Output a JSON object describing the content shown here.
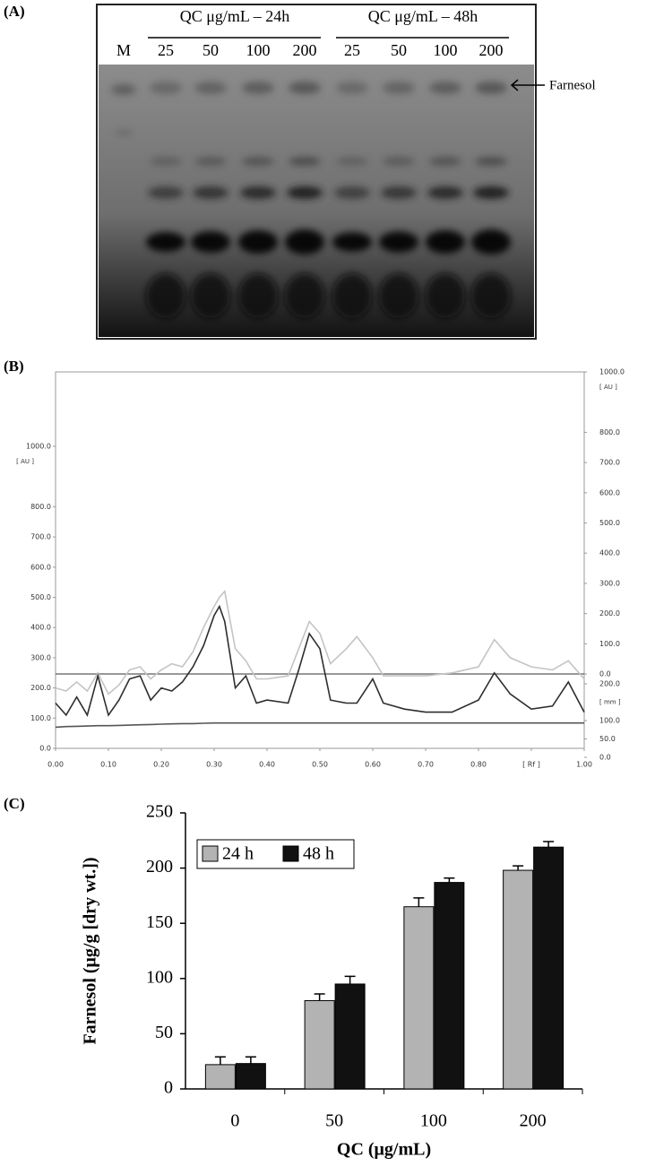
{
  "panel_a": {
    "title": "(A)",
    "groups": [
      "QC μg/mL – 24h",
      "QC μg/mL – 48h"
    ],
    "lanes": [
      "M",
      "25",
      "50",
      "100",
      "200",
      "25",
      "50",
      "100",
      "200"
    ],
    "annotation": "Farnesol"
  },
  "chart_data": [
    {
      "type": "line",
      "title": "(B)",
      "y_unit": "[ AU ]",
      "mm_unit": "[ mm ]",
      "x": [
        0,
        0.02,
        0.04,
        0.06,
        0.08,
        0.1,
        0.12,
        0.14,
        0.16,
        0.18,
        0.2,
        0.22,
        0.24,
        0.26,
        0.28,
        0.3,
        0.31,
        0.32,
        0.34,
        0.36,
        0.38,
        0.4,
        0.44,
        0.46,
        0.48,
        0.5,
        0.52,
        0.55,
        0.57,
        0.6,
        0.62,
        0.66,
        0.7,
        0.75,
        0.8,
        0.83,
        0.86,
        0.9,
        0.94,
        0.97,
        1
      ],
      "series": [
        {
          "color": "#c4c4c4",
          "values": [
            200,
            190,
            220,
            190,
            250,
            180,
            210,
            260,
            270,
            230,
            260,
            280,
            270,
            320,
            400,
            470,
            500,
            520,
            330,
            290,
            230,
            230,
            240,
            330,
            420,
            380,
            280,
            330,
            370,
            300,
            240,
            240,
            240,
            250,
            270,
            360,
            300,
            270,
            260,
            290,
            230
          ]
        },
        {
          "color": "#2e2e2e",
          "values": [
            150,
            110,
            170,
            110,
            240,
            110,
            160,
            230,
            240,
            160,
            200,
            190,
            220,
            270,
            340,
            440,
            470,
            420,
            200,
            240,
            150,
            160,
            150,
            260,
            380,
            330,
            160,
            150,
            150,
            230,
            150,
            130,
            120,
            120,
            160,
            250,
            180,
            130,
            140,
            220,
            120
          ]
        },
        {
          "color": "#555555",
          "values": [
            70,
            72,
            73,
            74,
            75,
            75,
            76,
            77,
            78,
            79,
            80,
            81,
            82,
            82,
            83,
            84,
            84,
            84,
            84,
            84,
            84,
            84,
            84,
            84,
            84,
            84,
            84,
            84,
            84,
            84,
            84,
            84,
            84,
            84,
            84,
            84,
            84,
            84,
            84,
            84,
            84
          ]
        }
      ],
      "xlim": [
        0,
        1
      ],
      "xticks": [
        {
          "value": 0,
          "label": "0.00"
        },
        {
          "value": 0.1,
          "label": "0.10"
        },
        {
          "value": 0.2,
          "label": "0.20"
        },
        {
          "value": 0.3,
          "label": "0.30"
        },
        {
          "value": 0.4,
          "label": "0.40"
        },
        {
          "value": 0.5,
          "label": "0.50"
        },
        {
          "value": 0.6,
          "label": "0.60"
        },
        {
          "value": 0.7,
          "label": "0.70"
        },
        {
          "value": 0.8,
          "label": "0.80"
        },
        {
          "value": 0.9,
          "label": "[ Rf ]"
        },
        {
          "value": 1,
          "label": "1.00"
        }
      ],
      "ylim": [
        0,
        1000
      ],
      "yticks": [
        {
          "value": 0,
          "label": "0.0"
        },
        {
          "value": 100,
          "label": "100.0"
        },
        {
          "value": 200,
          "label": "200.0"
        },
        {
          "value": 300,
          "label": "300.0"
        },
        {
          "value": 400,
          "label": "400.0"
        },
        {
          "value": 500,
          "label": "500.0"
        },
        {
          "value": 600,
          "label": "600.0"
        },
        {
          "value": 700,
          "label": "700.0"
        },
        {
          "value": 800,
          "label": "800.0"
        },
        {
          "value": 1000,
          "label": "1000.0"
        }
      ],
      "y2lim": [
        0,
        1000
      ],
      "y2ticks": [
        {
          "value": 0,
          "label": "0.0"
        },
        {
          "value": 100,
          "label": "100.0"
        },
        {
          "value": 200,
          "label": "200.0"
        },
        {
          "value": 300,
          "label": "300.0"
        },
        {
          "value": 400,
          "label": "400.0"
        },
        {
          "value": 500,
          "label": "500.0"
        },
        {
          "value": 600,
          "label": "600.0"
        },
        {
          "value": 700,
          "label": "700.0"
        },
        {
          "value": 800,
          "label": "800.0"
        },
        {
          "value": 1000,
          "label": "1000.0"
        }
      ],
      "mm_ticks": [
        {
          "value": 0,
          "label": "0.0"
        },
        {
          "value": 50,
          "label": "50.0"
        },
        {
          "value": 100,
          "label": "100.0"
        },
        {
          "value": 200,
          "label": "200.0"
        }
      ]
    },
    {
      "type": "bar",
      "title": "(C)",
      "x_label": "QC (μg/mL)",
      "y_label": "Farnesol (μg/g [dry wt.])",
      "categories": [
        "0",
        "50",
        "100",
        "200"
      ],
      "series": [
        {
          "name": "24 h",
          "color": "#b3b3b3",
          "values": [
            22,
            80,
            165,
            198
          ],
          "error": [
            7,
            6,
            8,
            4
          ]
        },
        {
          "name": "48 h",
          "color": "#111111",
          "values": [
            23,
            95,
            187,
            219
          ],
          "error": [
            6,
            7,
            4,
            5
          ]
        }
      ],
      "ylim": [
        0,
        250
      ],
      "yticks": [
        0,
        50,
        100,
        150,
        200,
        250
      ],
      "legend": "upper left"
    }
  ]
}
